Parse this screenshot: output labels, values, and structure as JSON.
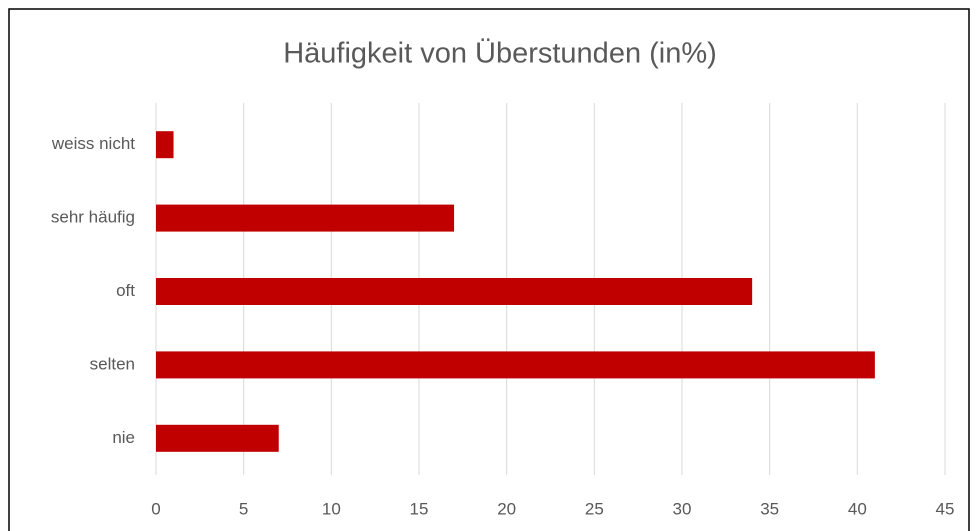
{
  "chart_data": {
    "type": "hbar",
    "title": "Häufigkeit von Überstunden (in%)",
    "categories": [
      "weiss nicht",
      "sehr häufig",
      "oft",
      "selten",
      "nie"
    ],
    "values": [
      1,
      17,
      34,
      41,
      7
    ],
    "color": "#c00000",
    "xlim": [
      0,
      45
    ],
    "xticks": [
      0,
      5,
      10,
      15,
      20,
      25,
      30,
      35,
      40,
      45
    ],
    "grid": true
  }
}
